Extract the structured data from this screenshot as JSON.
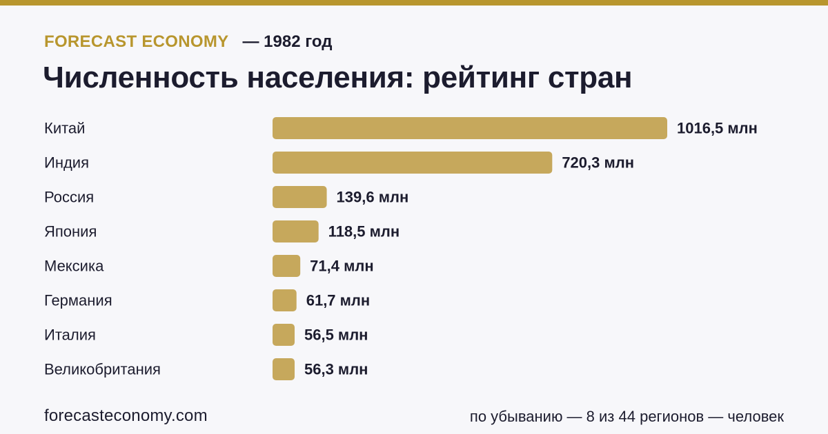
{
  "header": {
    "brand": "FORECAST ECONOMY",
    "year_label": "— 1982 год"
  },
  "title": "Численность населения: рейтинг стран",
  "colors": {
    "accent": "#b8962e",
    "bar": "#c6a85c",
    "text": "#1c1c2e",
    "background": "#f7f7fa"
  },
  "chart_data": {
    "type": "bar",
    "orientation": "horizontal",
    "categories": [
      "Китай",
      "Индия",
      "Россия",
      "Япония",
      "Мексика",
      "Германия",
      "Италия",
      "Великобритания"
    ],
    "values": [
      1016.5,
      720.3,
      139.6,
      118.5,
      71.4,
      61.7,
      56.5,
      56.3
    ],
    "value_labels": [
      "1016,5 млн",
      "720,3 млн",
      "139,6 млн",
      "118,5 млн",
      "71,4 млн",
      "61,7 млн",
      "56,5 млн",
      "56,3 млн"
    ],
    "unit": "млн",
    "xlim": [
      0,
      1016.5
    ],
    "grid": false,
    "legend": "none"
  },
  "footer": {
    "site": "forecasteconomy.com",
    "note": "по убыванию — 8 из 44 регионов — человек"
  }
}
